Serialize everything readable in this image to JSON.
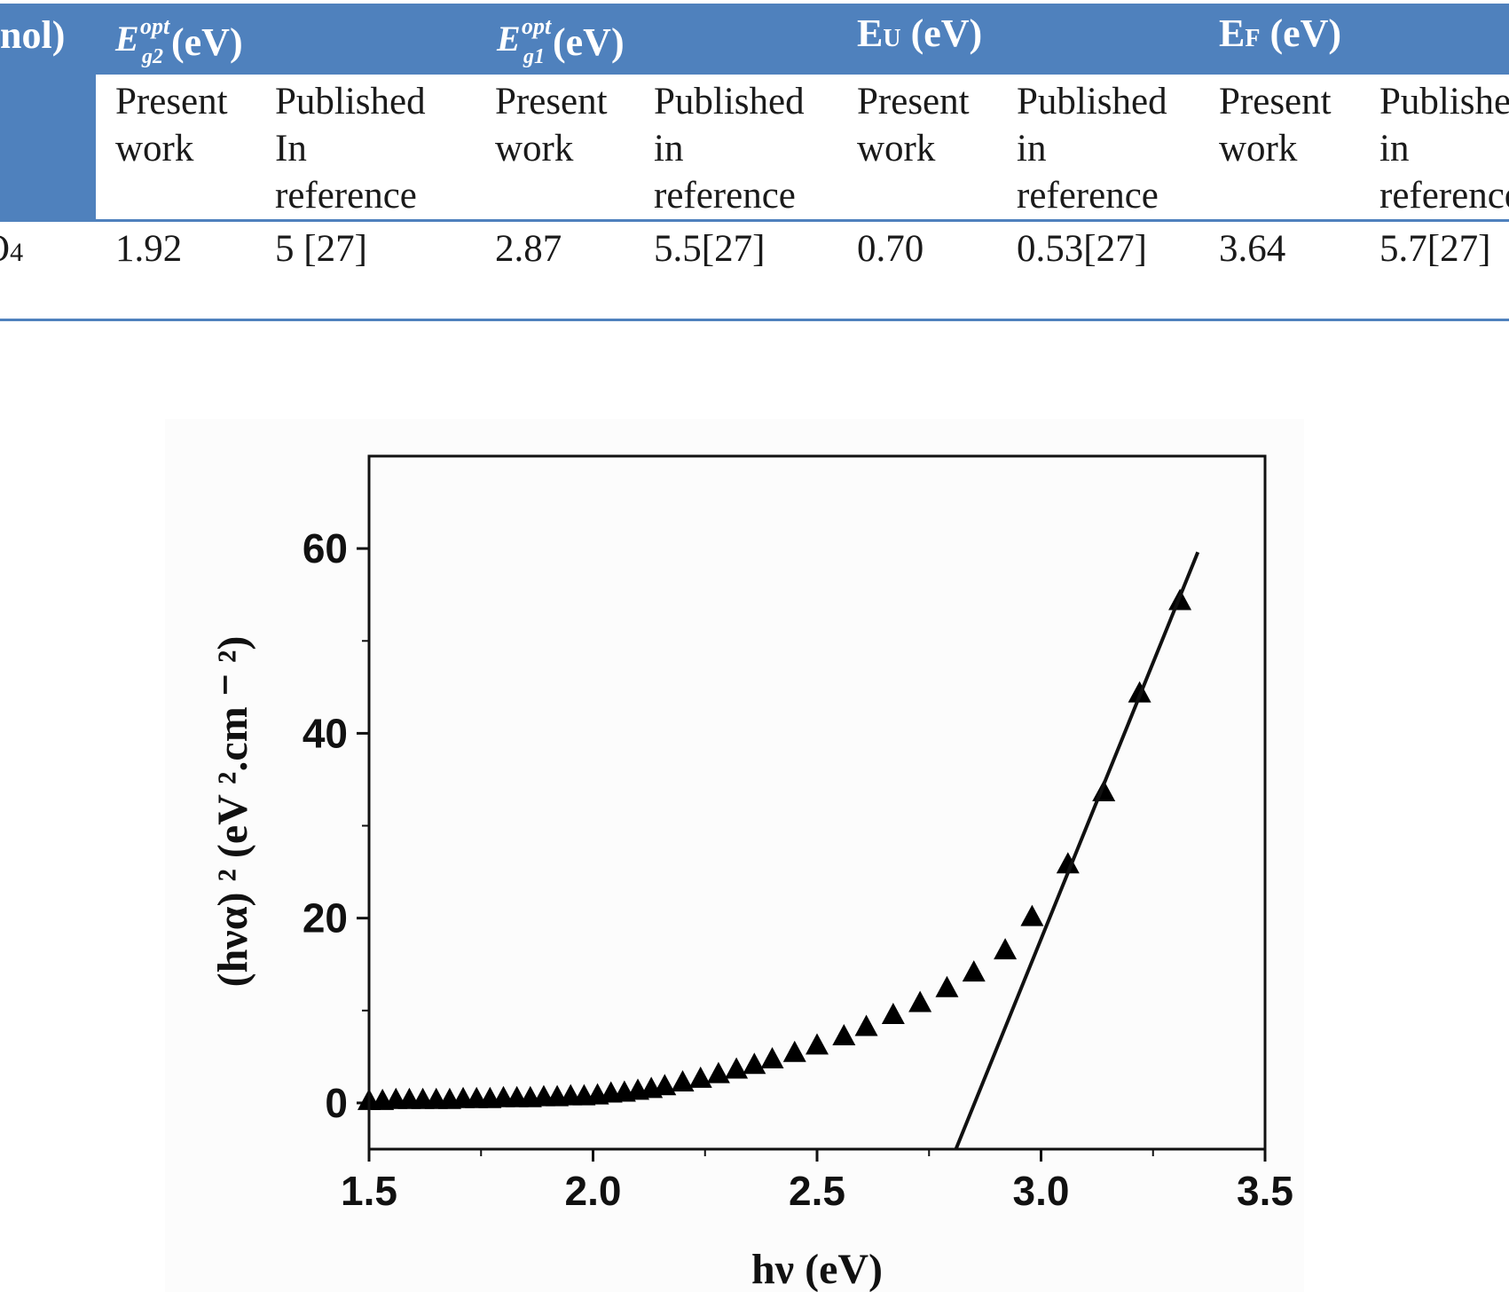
{
  "table": {
    "first_col_header": "nol)",
    "first_col_value": "O",
    "first_col_value_sub": "4",
    "groups": [
      {
        "base": "E",
        "sup": "opt",
        "sub": "g2",
        "unit": " (eV)"
      },
      {
        "base": "E",
        "sup": "opt",
        "sub": "g1",
        "unit": " (eV)"
      },
      {
        "base": "E",
        "sub": "U",
        "unit": " (eV)"
      },
      {
        "base": "E",
        "sub": "F",
        "unit": " (eV)"
      }
    ],
    "subheaders": [
      "Present work",
      "Published In reference",
      "Present work",
      "Published in reference",
      "Present work",
      "Published in reference",
      "Present work",
      "Published in reference"
    ],
    "values": [
      "1.92",
      "5 [27]",
      "2.87",
      "5.5[27]",
      "0.70",
      "0.53[27]",
      "3.64",
      "5.7[27]"
    ]
  },
  "chart_data": {
    "type": "scatter",
    "xlabel": "hν (eV)",
    "ylabel": "(hνα) ² (eV ².cm ⁻ ²)",
    "xlim": [
      1.5,
      3.5
    ],
    "ylim": [
      -5,
      70
    ],
    "xticks": [
      "1.5",
      "2.0",
      "2.5",
      "3.0",
      "3.5"
    ],
    "yticks": [
      "0",
      "20",
      "40",
      "60"
    ],
    "marker": "triangle",
    "series": [
      {
        "x": [
          1.5,
          1.53,
          1.56,
          1.59,
          1.62,
          1.65,
          1.68,
          1.71,
          1.74,
          1.77,
          1.8,
          1.83,
          1.86,
          1.89,
          1.92,
          1.95,
          1.98,
          2.01,
          2.04,
          2.07,
          2.1,
          2.13,
          2.16,
          2.2,
          2.24,
          2.28,
          2.32,
          2.36,
          2.4,
          2.45,
          2.5,
          2.56,
          2.61,
          2.67,
          2.73,
          2.79,
          2.85,
          2.92,
          2.98,
          3.06,
          3.14,
          3.22,
          3.31
        ],
        "y": [
          0.2,
          0.2,
          0.3,
          0.3,
          0.3,
          0.3,
          0.3,
          0.4,
          0.4,
          0.4,
          0.5,
          0.5,
          0.5,
          0.6,
          0.6,
          0.7,
          0.7,
          0.8,
          1.0,
          1.1,
          1.3,
          1.5,
          1.8,
          2.2,
          2.6,
          3.1,
          3.6,
          4.1,
          4.7,
          5.4,
          6.2,
          7.2,
          8.2,
          9.5,
          10.8,
          12.4,
          14.1,
          16.5,
          20.1,
          25.8,
          33.6,
          44.3,
          54.3
        ]
      },
      {
        "type": "line",
        "x": [
          2.81,
          3.35
        ],
        "y": [
          -5,
          59.6
        ]
      }
    ]
  }
}
